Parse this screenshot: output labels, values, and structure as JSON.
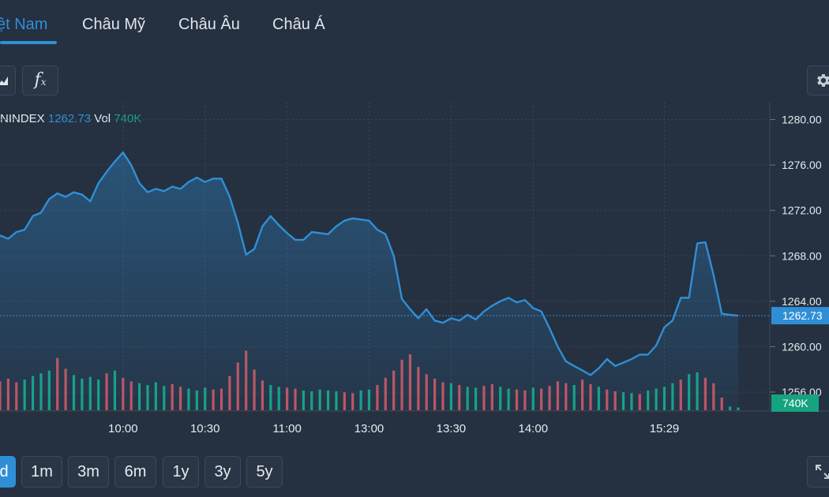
{
  "tabs": [
    {
      "label": "ệt Nam",
      "active": true
    },
    {
      "label": "Châu Mỹ",
      "active": false
    },
    {
      "label": "Châu Âu",
      "active": false
    },
    {
      "label": "Châu Á",
      "active": false
    }
  ],
  "toolbar": {
    "fx_label": "f"
  },
  "legend": {
    "symbol": "NINDEX",
    "value": "1262.73",
    "vol_label": "Vol",
    "vol_value": "740K"
  },
  "ranges": [
    {
      "label": "d",
      "active": true
    },
    {
      "label": "1m",
      "active": false
    },
    {
      "label": "3m",
      "active": false
    },
    {
      "label": "6m",
      "active": false
    },
    {
      "label": "1y",
      "active": false
    },
    {
      "label": "3y",
      "active": false
    },
    {
      "label": "5y",
      "active": false
    }
  ],
  "colors": {
    "line": "#2f8fd6",
    "up": "#16a37f",
    "down": "#c9515a",
    "grid": "#3a4656",
    "text": "#e6ebf0"
  },
  "chart_data": {
    "type": "area",
    "series": [
      {
        "values": [
          [
            0.0,
            1269.8
          ],
          [
            0.1,
            1269.5
          ],
          [
            0.2,
            1270.1
          ],
          [
            0.3,
            1270.3
          ],
          [
            0.4,
            1271.5
          ],
          [
            0.5,
            1271.8
          ],
          [
            0.6,
            1273.0
          ],
          [
            0.7,
            1273.5
          ],
          [
            0.8,
            1273.2
          ],
          [
            0.9,
            1273.6
          ],
          [
            1.0,
            1273.4
          ],
          [
            1.1,
            1272.8
          ],
          [
            1.2,
            1274.4
          ],
          [
            1.3,
            1275.4
          ],
          [
            1.4,
            1276.3
          ],
          [
            1.5,
            1277.1
          ],
          [
            1.6,
            1276.0
          ],
          [
            1.7,
            1274.4
          ],
          [
            1.8,
            1273.6
          ],
          [
            1.9,
            1273.9
          ],
          [
            2.0,
            1273.7
          ],
          [
            2.1,
            1274.1
          ],
          [
            2.2,
            1273.9
          ],
          [
            2.3,
            1274.5
          ],
          [
            2.4,
            1274.9
          ],
          [
            2.5,
            1274.5
          ],
          [
            2.6,
            1274.8
          ],
          [
            2.7,
            1274.8
          ],
          [
            2.8,
            1273.2
          ],
          [
            2.9,
            1270.9
          ],
          [
            3.0,
            1268.1
          ],
          [
            3.1,
            1268.6
          ],
          [
            3.2,
            1270.6
          ],
          [
            3.3,
            1271.5
          ],
          [
            3.4,
            1270.7
          ],
          [
            3.5,
            1270.0
          ],
          [
            3.6,
            1269.4
          ],
          [
            3.7,
            1269.4
          ],
          [
            3.8,
            1270.1
          ],
          [
            3.9,
            1270.0
          ],
          [
            4.0,
            1269.9
          ],
          [
            4.1,
            1270.6
          ],
          [
            4.2,
            1271.1
          ],
          [
            4.3,
            1271.3
          ],
          [
            4.4,
            1271.2
          ],
          [
            4.5,
            1271.1
          ],
          [
            4.6,
            1270.3
          ],
          [
            4.7,
            1269.9
          ],
          [
            4.8,
            1268.0
          ],
          [
            4.9,
            1264.2
          ],
          [
            5.0,
            1263.3
          ],
          [
            5.1,
            1262.5
          ],
          [
            5.2,
            1263.3
          ],
          [
            5.3,
            1262.3
          ],
          [
            5.4,
            1262.1
          ],
          [
            5.5,
            1262.5
          ],
          [
            5.6,
            1262.3
          ],
          [
            5.7,
            1262.8
          ],
          [
            5.8,
            1262.4
          ],
          [
            5.9,
            1263.1
          ],
          [
            6.0,
            1263.6
          ],
          [
            6.1,
            1264.0
          ],
          [
            6.2,
            1264.3
          ],
          [
            6.3,
            1263.9
          ],
          [
            6.4,
            1264.1
          ],
          [
            6.5,
            1263.4
          ],
          [
            6.6,
            1263.1
          ],
          [
            6.7,
            1261.6
          ],
          [
            6.8,
            1260.0
          ],
          [
            6.9,
            1258.7
          ],
          [
            7.0,
            1258.3
          ],
          [
            7.1,
            1257.9
          ],
          [
            7.2,
            1257.5
          ],
          [
            7.3,
            1258.1
          ],
          [
            7.4,
            1258.9
          ],
          [
            7.5,
            1258.3
          ],
          [
            7.6,
            1258.6
          ],
          [
            7.7,
            1258.9
          ],
          [
            7.8,
            1259.3
          ],
          [
            7.9,
            1259.3
          ],
          [
            8.0,
            1260.1
          ],
          [
            8.1,
            1261.7
          ],
          [
            8.2,
            1262.3
          ],
          [
            8.3,
            1264.3
          ],
          [
            8.4,
            1264.3
          ],
          [
            8.5,
            1269.1
          ],
          [
            8.6,
            1269.2
          ],
          [
            8.7,
            1266.3
          ],
          [
            8.8,
            1262.9
          ],
          [
            8.9,
            1262.8
          ],
          [
            9.0,
            1262.73
          ]
        ]
      }
    ],
    "volumes": [
      [
        0.0,
        32,
        "down"
      ],
      [
        0.1,
        35,
        "down"
      ],
      [
        0.2,
        31,
        "down"
      ],
      [
        0.3,
        34,
        "up"
      ],
      [
        0.4,
        38,
        "up"
      ],
      [
        0.5,
        41,
        "up"
      ],
      [
        0.6,
        44,
        "up"
      ],
      [
        0.7,
        58,
        "down"
      ],
      [
        0.8,
        46,
        "down"
      ],
      [
        0.9,
        39,
        "up"
      ],
      [
        1.0,
        35,
        "up"
      ],
      [
        1.1,
        37,
        "up"
      ],
      [
        1.2,
        34,
        "up"
      ],
      [
        1.3,
        41,
        "down"
      ],
      [
        1.4,
        44,
        "up"
      ],
      [
        1.5,
        36,
        "down"
      ],
      [
        1.6,
        32,
        "down"
      ],
      [
        1.7,
        30,
        "up"
      ],
      [
        1.8,
        28,
        "up"
      ],
      [
        1.9,
        31,
        "up"
      ],
      [
        2.0,
        27,
        "up"
      ],
      [
        2.1,
        29,
        "down"
      ],
      [
        2.2,
        26,
        "down"
      ],
      [
        2.3,
        24,
        "up"
      ],
      [
        2.4,
        22,
        "up"
      ],
      [
        2.5,
        25,
        "up"
      ],
      [
        2.6,
        23,
        "down"
      ],
      [
        2.7,
        24,
        "down"
      ],
      [
        2.8,
        38,
        "down"
      ],
      [
        2.9,
        53,
        "down"
      ],
      [
        3.0,
        66,
        "down"
      ],
      [
        3.1,
        45,
        "down"
      ],
      [
        3.2,
        33,
        "down"
      ],
      [
        3.3,
        28,
        "up"
      ],
      [
        3.4,
        26,
        "up"
      ],
      [
        3.5,
        25,
        "down"
      ],
      [
        3.6,
        24,
        "down"
      ],
      [
        3.7,
        22,
        "up"
      ],
      [
        3.8,
        21,
        "up"
      ],
      [
        3.9,
        23,
        "up"
      ],
      [
        4.0,
        22,
        "up"
      ],
      [
        4.1,
        21,
        "up"
      ],
      [
        4.2,
        20,
        "down"
      ],
      [
        4.3,
        19,
        "down"
      ],
      [
        4.4,
        22,
        "up"
      ],
      [
        4.5,
        23,
        "up"
      ],
      [
        4.6,
        28,
        "down"
      ],
      [
        4.7,
        36,
        "down"
      ],
      [
        4.8,
        44,
        "down"
      ],
      [
        4.9,
        56,
        "down"
      ],
      [
        5.0,
        62,
        "down"
      ],
      [
        5.1,
        48,
        "down"
      ],
      [
        5.2,
        40,
        "down"
      ],
      [
        5.3,
        35,
        "down"
      ],
      [
        5.4,
        31,
        "down"
      ],
      [
        5.5,
        30,
        "up"
      ],
      [
        5.6,
        28,
        "down"
      ],
      [
        5.7,
        26,
        "up"
      ],
      [
        5.8,
        25,
        "up"
      ],
      [
        5.9,
        27,
        "down"
      ],
      [
        6.0,
        29,
        "down"
      ],
      [
        6.1,
        26,
        "up"
      ],
      [
        6.2,
        24,
        "up"
      ],
      [
        6.3,
        23,
        "down"
      ],
      [
        6.4,
        22,
        "down"
      ],
      [
        6.5,
        25,
        "up"
      ],
      [
        6.6,
        24,
        "down"
      ],
      [
        6.7,
        27,
        "down"
      ],
      [
        6.8,
        32,
        "down"
      ],
      [
        6.9,
        30,
        "down"
      ],
      [
        7.0,
        28,
        "up"
      ],
      [
        7.1,
        34,
        "down"
      ],
      [
        7.2,
        29,
        "down"
      ],
      [
        7.3,
        26,
        "up"
      ],
      [
        7.4,
        23,
        "down"
      ],
      [
        7.5,
        21,
        "down"
      ],
      [
        7.6,
        20,
        "up"
      ],
      [
        7.7,
        19,
        "up"
      ],
      [
        7.8,
        18,
        "down"
      ],
      [
        7.9,
        22,
        "up"
      ],
      [
        8.0,
        24,
        "up"
      ],
      [
        8.1,
        26,
        "up"
      ],
      [
        8.2,
        30,
        "up"
      ],
      [
        8.3,
        34,
        "down"
      ],
      [
        8.4,
        40,
        "up"
      ],
      [
        8.5,
        42,
        "up"
      ],
      [
        8.6,
        36,
        "down"
      ],
      [
        8.7,
        30,
        "down"
      ],
      [
        8.8,
        14,
        "down"
      ],
      [
        8.9,
        4,
        "up"
      ],
      [
        9.0,
        3,
        "up"
      ]
    ],
    "x_labels": [
      {
        "label": "10:00",
        "pos": 1.5
      },
      {
        "label": "10:30",
        "pos": 2.5
      },
      {
        "label": "11:00",
        "pos": 3.5
      },
      {
        "label": "13:00",
        "pos": 4.5
      },
      {
        "label": "13:30",
        "pos": 5.5
      },
      {
        "label": "14:00",
        "pos": 6.5
      },
      {
        "label": "15:29",
        "pos": 8.1
      }
    ],
    "y_ticks": [
      "1256.00",
      "1260.00",
      "1264.00",
      "1268.00",
      "1272.00",
      "1276.00",
      "1280.00"
    ],
    "ylim": [
      1254.4,
      1281.5
    ],
    "last_price": "1262.73",
    "last_volume": "740K",
    "grid": true
  }
}
